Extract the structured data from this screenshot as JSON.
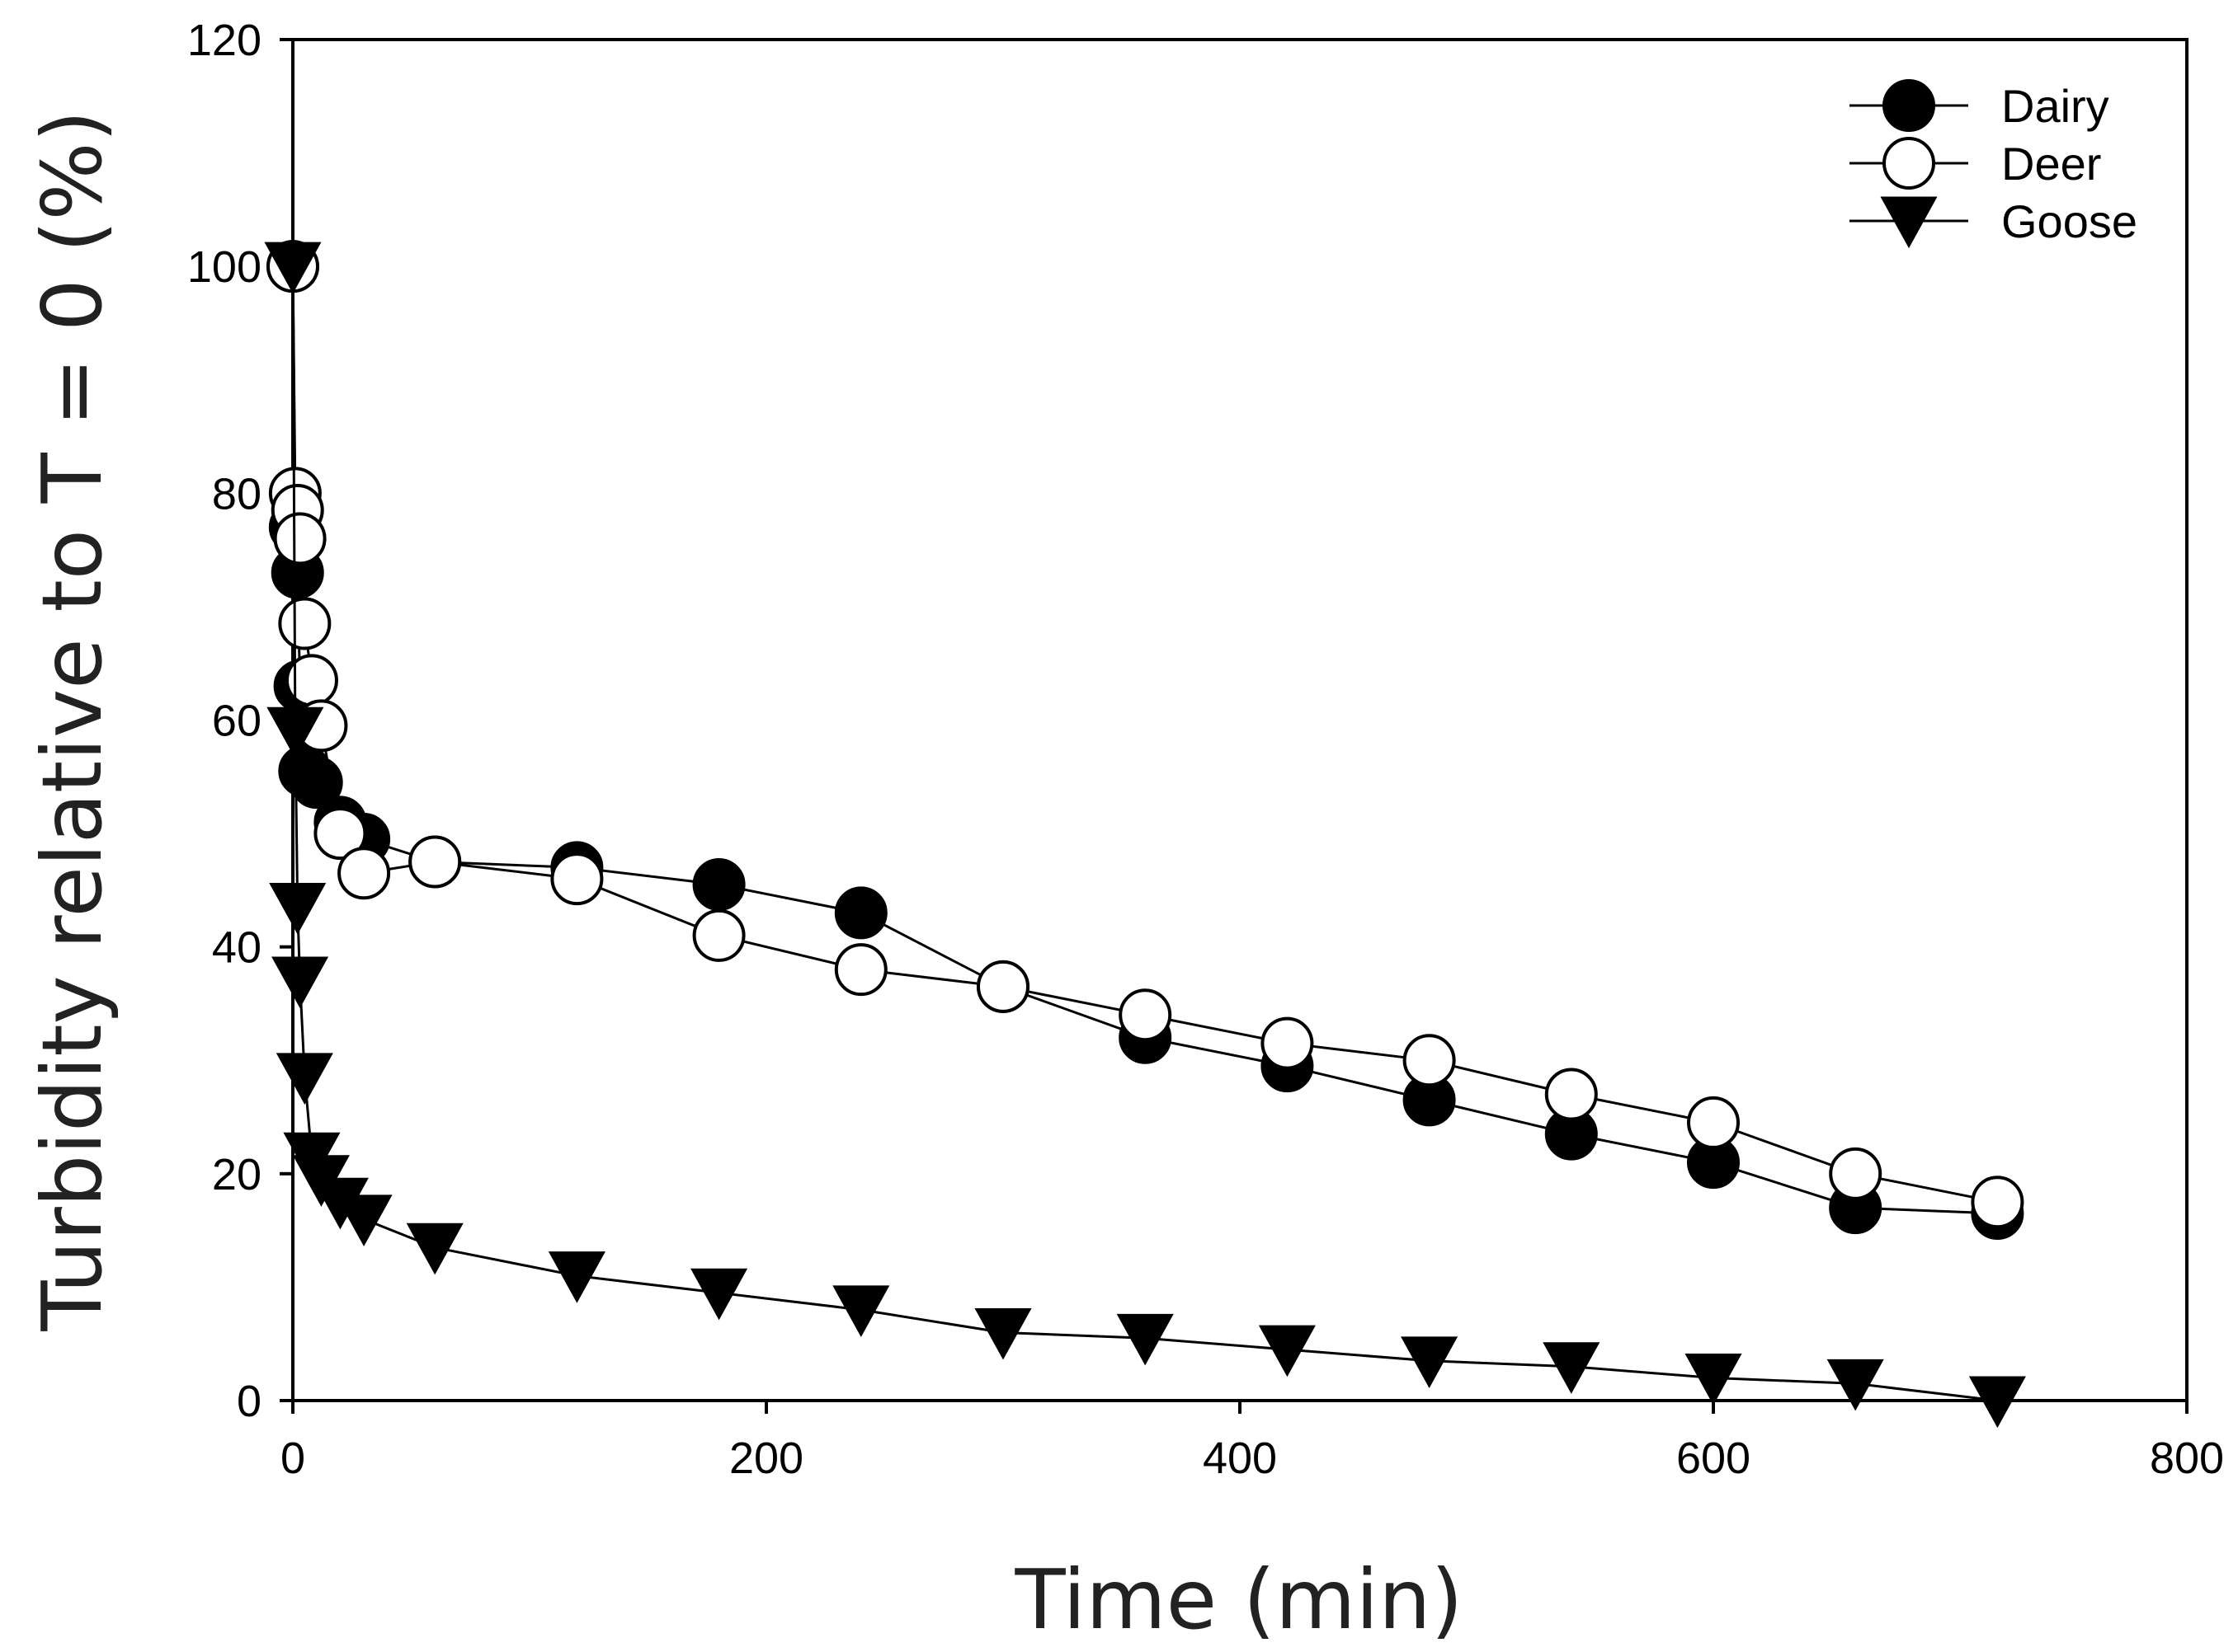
{
  "chart_data": {
    "type": "line",
    "title": "",
    "xlabel": "Time (min)",
    "ylabel": "Turbidity relative to T = 0 (%)",
    "xlim": [
      0,
      800
    ],
    "ylim": [
      0,
      120
    ],
    "xticks": [
      0,
      200,
      400,
      600,
      800
    ],
    "yticks": [
      0,
      20,
      40,
      60,
      80,
      100,
      120
    ],
    "grid": false,
    "legend_position": "top-right",
    "series": [
      {
        "name": "Dairy",
        "marker": "filled-circle",
        "color": "#000000",
        "x": [
          0,
          1,
          2,
          3,
          5,
          10,
          20,
          30,
          60,
          120,
          180,
          240,
          300,
          360,
          420,
          480,
          540,
          600,
          660,
          720
        ],
        "y": [
          100,
          77,
          73,
          63,
          55.5,
          54.5,
          51,
          49.5,
          47.5,
          47,
          45.5,
          43,
          36.5,
          32,
          29.5,
          26.5,
          23.5,
          21,
          17,
          16.5
        ]
      },
      {
        "name": "Deer",
        "marker": "open-circle",
        "color": "#000000",
        "x": [
          0,
          1,
          2,
          3,
          5,
          8,
          12,
          20,
          30,
          60,
          120,
          180,
          240,
          300,
          360,
          420,
          480,
          540,
          600,
          660,
          720
        ],
        "y": [
          100,
          80,
          78.5,
          76,
          68.5,
          63.5,
          59.5,
          50,
          46.5,
          47.5,
          46,
          41,
          38,
          36.5,
          34,
          31.5,
          30,
          27,
          24.5,
          20,
          17.5
        ]
      },
      {
        "name": "Goose",
        "marker": "filled-triangle-down",
        "color": "#000000",
        "x": [
          0,
          1,
          2,
          3,
          5,
          8,
          12,
          20,
          30,
          60,
          120,
          180,
          240,
          300,
          360,
          420,
          480,
          540,
          600,
          660,
          720
        ],
        "y": [
          100,
          59,
          43.5,
          37,
          28.5,
          21.5,
          19.5,
          17.5,
          16,
          13.5,
          11,
          9.5,
          8,
          6,
          5.5,
          4.5,
          3.5,
          3,
          2,
          1.5,
          0
        ]
      }
    ]
  }
}
